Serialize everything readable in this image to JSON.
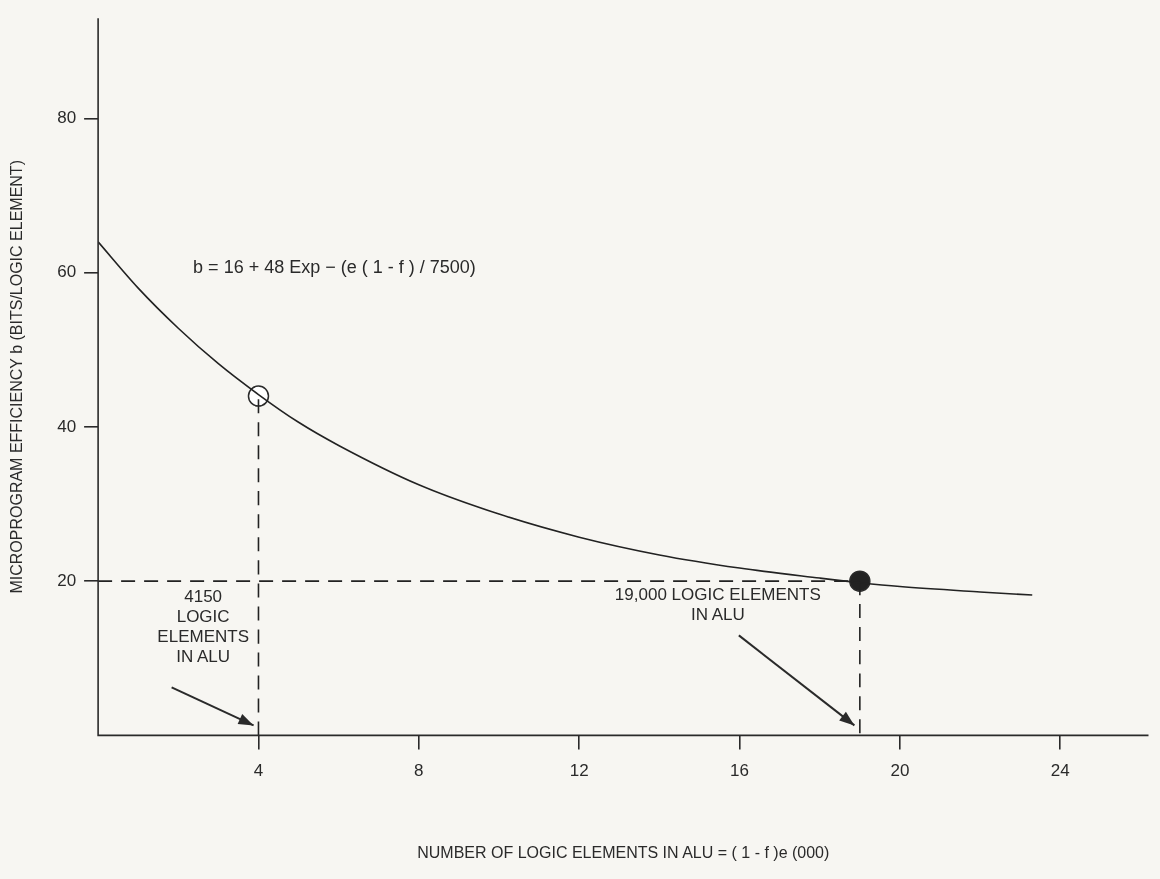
{
  "chart_data": {
    "type": "line",
    "xlabel": "NUMBER OF LOGIC ELEMENTS IN ALU = ( 1 - f )e (000)",
    "ylabel": "MICROPROGRAM EFFICIENCY b (BITS/LOGIC ELEMENT)",
    "xlim": [
      0,
      26.2
    ],
    "xticks": [
      4,
      8,
      12,
      16,
      20,
      24
    ],
    "ylim": [
      0,
      93
    ],
    "yticks": [
      20,
      40,
      60,
      80
    ],
    "grid": false,
    "legend": false,
    "series": [
      {
        "color": "#222222",
        "x": [
          0,
          1,
          2,
          3,
          4,
          5,
          6,
          8,
          10,
          12,
          14,
          16,
          18,
          19,
          20,
          22,
          23.3
        ],
        "values": [
          64,
          58,
          52.8,
          48.2,
          44.2,
          40.6,
          37.6,
          32.5,
          28.7,
          25.7,
          23.4,
          21.7,
          20.4,
          19.8,
          19.3,
          18.6,
          18.2
        ],
        "marker": "none",
        "line_style": "solid"
      },
      {
        "color": "#222222",
        "x": [
          4,
          4
        ],
        "values": [
          0,
          44
        ],
        "marker": "none",
        "line_style": "dashed"
      },
      {
        "color": "#222222",
        "x": [
          0,
          19
        ],
        "values": [
          20,
          20
        ],
        "marker": "none",
        "line_style": "dashed"
      },
      {
        "color": "#222222",
        "x": [
          19,
          19
        ],
        "values": [
          20,
          0
        ],
        "marker": "none",
        "line_style": "dashed"
      },
      {
        "type": "scatter",
        "color": "#ffffff",
        "x": [
          4
        ],
        "values": [
          44
        ],
        "marker": "circle"
      },
      {
        "type": "scatter",
        "color": "#222222",
        "x": [
          19
        ],
        "values": [
          20
        ],
        "marker": "circle"
      }
    ],
    "annotations": [
      "4150\nLOGIC\nELEMENTS\nIN ALU",
      "19,000 LOGIC ELEMENTS\nIN ALU",
      "b = 16 + 48 Exp − (e ( 1 - f ) / 7500)"
    ]
  }
}
